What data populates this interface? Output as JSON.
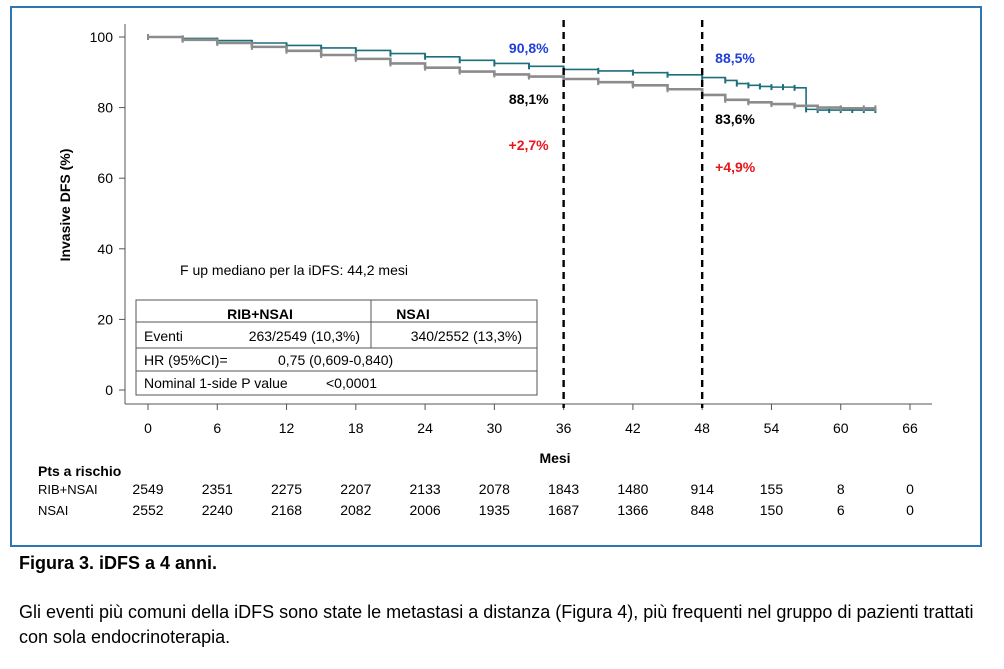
{
  "chart_data": {
    "type": "line",
    "xlabel": "Mesi",
    "ylabel": "Invasive DFS (%)",
    "xlim": [
      0,
      66
    ],
    "ylim": [
      0,
      100
    ],
    "xticks": [
      0,
      6,
      12,
      18,
      24,
      30,
      36,
      42,
      48,
      54,
      60,
      66
    ],
    "yticks": [
      0,
      20,
      40,
      60,
      80,
      100
    ],
    "grid": false,
    "series": [
      {
        "name": "RIB+NSAI",
        "color": "#1e6f7e",
        "x": [
          0,
          3,
          6,
          9,
          12,
          15,
          18,
          21,
          24,
          27,
          30,
          33,
          36,
          39,
          42,
          45,
          48,
          50,
          51,
          52,
          53,
          54,
          55,
          56,
          57,
          58,
          59,
          60,
          61,
          62,
          63
        ],
        "y": [
          100,
          99.6,
          99,
          98.3,
          97.6,
          96.9,
          96.2,
          95.3,
          94.4,
          93.4,
          92.5,
          91.7,
          90.8,
          90.4,
          89.9,
          89.3,
          88.5,
          87.7,
          86.8,
          86.3,
          86,
          85.8,
          85.8,
          85.6,
          79.5,
          79.3,
          79.3,
          79.3,
          79.3,
          79.3,
          79.3
        ]
      },
      {
        "name": "NSAI",
        "color": "#8c8c8c",
        "x": [
          0,
          3,
          6,
          9,
          12,
          15,
          18,
          21,
          24,
          27,
          30,
          33,
          36,
          39,
          42,
          45,
          48,
          50,
          52,
          54,
          56,
          58,
          60,
          62,
          63
        ],
        "y": [
          100,
          99.2,
          98.3,
          97.2,
          96.1,
          94.9,
          93.8,
          92.5,
          91.3,
          90.2,
          89.4,
          88.8,
          88.1,
          87.2,
          86.3,
          85.2,
          83.6,
          82.2,
          81.5,
          81,
          80.5,
          80,
          79.8,
          79.8,
          79.8
        ]
      }
    ],
    "reference_lines": [
      36,
      48
    ],
    "annotations": [
      {
        "text": "90,8%",
        "x": 36,
        "pos": "upper-left",
        "color": "#1f3fd8"
      },
      {
        "text": "88,1%",
        "x": 36,
        "pos": "lower-left",
        "color": "#000000"
      },
      {
        "text": "+2,7%",
        "x": 36,
        "pos": "diff-left",
        "color": "#e8161b"
      },
      {
        "text": "88,5%",
        "x": 48,
        "pos": "upper-right",
        "color": "#1f3fd8"
      },
      {
        "text": "83,6%",
        "x": 48,
        "pos": "lower-right",
        "color": "#000000"
      },
      {
        "text": "+4,9%",
        "x": 48,
        "pos": "diff-right",
        "color": "#e8161b"
      }
    ],
    "note": "F up mediano per la iDFS: 44,2 mesi",
    "stats_table": {
      "headers": [
        "RIB+NSAI",
        "NSAI"
      ],
      "events_label": "Eventi",
      "events": [
        "263/2549 (10,3%)",
        "340/2552 (13,3%)"
      ],
      "hr_label": "HR (95%CI)=",
      "hr_value": "0,75 (0,609-0,840)",
      "p_label": "Nominal 1-side P value",
      "p_value": "<0,0001"
    },
    "risk_table": {
      "title": "Pts a rischio",
      "times": [
        0,
        6,
        12,
        18,
        24,
        30,
        36,
        42,
        48,
        54,
        60,
        66
      ],
      "rows": [
        {
          "label": "RIB+NSAI",
          "values": [
            "2549",
            "2351",
            "2275",
            "2207",
            "2133",
            "2078",
            "1843",
            "1480",
            "914",
            "155",
            "8",
            "0"
          ]
        },
        {
          "label": "NSAI",
          "values": [
            "2552",
            "2240",
            "2168",
            "2082",
            "2006",
            "1935",
            "1687",
            "1366",
            "848",
            "150",
            "6",
            "0"
          ]
        }
      ]
    }
  },
  "figure": {
    "caption": "Figura 3. iDFS a 4 anni.",
    "paragraph": "Gli eventi più comuni della iDFS sono state le metastasi a distanza (Figura 4), più frequenti nel gruppo di pazienti trattati con sola endocrinoterapia."
  }
}
